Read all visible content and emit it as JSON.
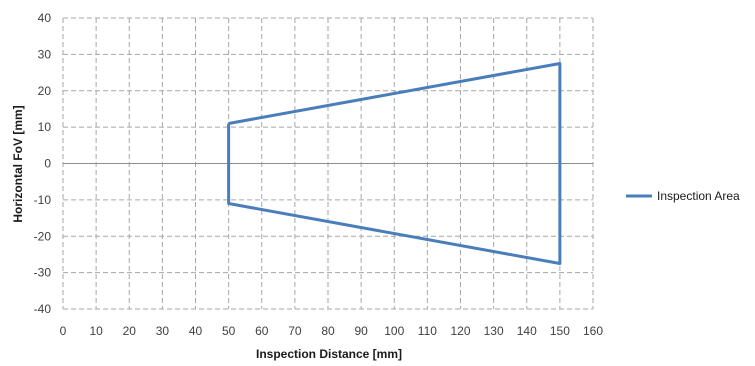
{
  "chart_data": {
    "type": "line",
    "xlabel": "Inspection Distance [mm]",
    "ylabel": "Horizontal FoV [mm]",
    "xlim": [
      0,
      160
    ],
    "ylim": [
      -40,
      40
    ],
    "x_ticks": [
      0,
      10,
      20,
      30,
      40,
      50,
      60,
      70,
      80,
      90,
      100,
      110,
      120,
      130,
      140,
      150,
      160
    ],
    "y_ticks": [
      40,
      30,
      20,
      10,
      0,
      -10,
      -20,
      -30,
      -40
    ],
    "grid": true,
    "legend_position": "right",
    "series": [
      {
        "name": "Inspection Area",
        "color": "#4a7ebb",
        "x": [
          50,
          150,
          150,
          50,
          50
        ],
        "y": [
          11,
          27.5,
          -27.5,
          -11,
          11
        ]
      }
    ]
  }
}
